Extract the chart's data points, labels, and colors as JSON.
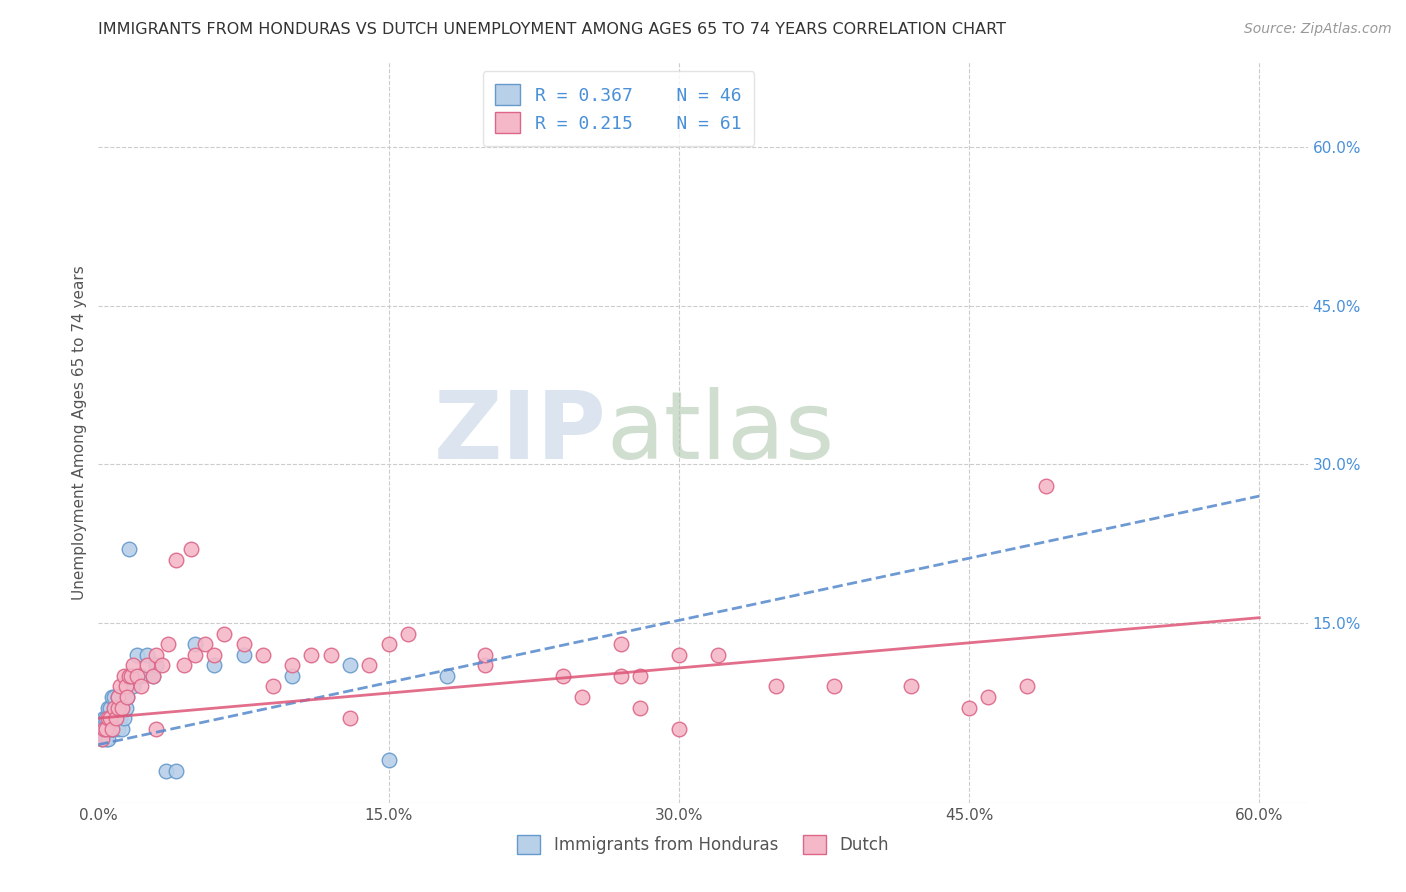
{
  "title": "IMMIGRANTS FROM HONDURAS VS DUTCH UNEMPLOYMENT AMONG AGES 65 TO 74 YEARS CORRELATION CHART",
  "source_text": "Source: ZipAtlas.com",
  "ylabel": "Unemployment Among Ages 65 to 74 years",
  "xlim": [
    0.0,
    0.625
  ],
  "ylim": [
    -0.02,
    0.68
  ],
  "xtick_labels": [
    "0.0%",
    "15.0%",
    "30.0%",
    "45.0%",
    "60.0%"
  ],
  "xtick_vals": [
    0.0,
    0.15,
    0.3,
    0.45,
    0.6
  ],
  "ytick_right_labels": [
    "15.0%",
    "30.0%",
    "45.0%",
    "60.0%"
  ],
  "ytick_right_vals": [
    0.15,
    0.3,
    0.45,
    0.6
  ],
  "hgrid_vals": [
    0.15,
    0.3,
    0.45,
    0.6
  ],
  "series1_color": "#b8d0e8",
  "series1_edge": "#6699cc",
  "series1_line_color": "#5588cc",
  "series2_color": "#f4b8c8",
  "series2_edge": "#dd6688",
  "series2_line_color": "#dd5577",
  "R1": 0.367,
  "N1": 46,
  "R2": 0.215,
  "N2": 61,
  "legend_label1": "Immigrants from Honduras",
  "legend_label2": "Dutch",
  "watermark_zip": "ZIP",
  "watermark_atlas": "atlas",
  "watermark_color_zip": "#c5d5e5",
  "watermark_color_atlas": "#b0c8b0",
  "title_color": "#333333",
  "axis_label_color": "#555555",
  "right_tick_color": "#4a90d9",
  "legend_r_color": "#4a90d9",
  "series1_x": [
    0.002,
    0.003,
    0.003,
    0.004,
    0.004,
    0.005,
    0.005,
    0.005,
    0.006,
    0.006,
    0.006,
    0.007,
    0.007,
    0.007,
    0.008,
    0.008,
    0.008,
    0.009,
    0.009,
    0.01,
    0.01,
    0.01,
    0.011,
    0.011,
    0.012,
    0.012,
    0.013,
    0.014,
    0.015,
    0.016,
    0.017,
    0.018,
    0.02,
    0.022,
    0.025,
    0.028,
    0.03,
    0.035,
    0.04,
    0.05,
    0.06,
    0.075,
    0.1,
    0.13,
    0.15,
    0.18
  ],
  "series1_y": [
    0.04,
    0.05,
    0.06,
    0.04,
    0.06,
    0.04,
    0.05,
    0.07,
    0.05,
    0.06,
    0.07,
    0.05,
    0.06,
    0.08,
    0.05,
    0.06,
    0.08,
    0.06,
    0.07,
    0.05,
    0.06,
    0.08,
    0.06,
    0.07,
    0.05,
    0.07,
    0.06,
    0.07,
    0.08,
    0.22,
    0.1,
    0.09,
    0.12,
    0.1,
    0.12,
    0.1,
    0.11,
    0.01,
    0.01,
    0.13,
    0.11,
    0.12,
    0.1,
    0.11,
    0.02,
    0.1
  ],
  "series2_x": [
    0.002,
    0.003,
    0.004,
    0.005,
    0.006,
    0.007,
    0.008,
    0.009,
    0.01,
    0.01,
    0.011,
    0.012,
    0.013,
    0.014,
    0.015,
    0.016,
    0.017,
    0.018,
    0.02,
    0.022,
    0.025,
    0.028,
    0.03,
    0.033,
    0.036,
    0.04,
    0.044,
    0.048,
    0.05,
    0.055,
    0.06,
    0.065,
    0.075,
    0.085,
    0.1,
    0.11,
    0.12,
    0.14,
    0.16,
    0.2,
    0.24,
    0.28,
    0.3,
    0.35,
    0.38,
    0.42,
    0.45,
    0.46,
    0.48,
    0.49,
    0.3,
    0.32,
    0.25,
    0.28,
    0.2,
    0.27,
    0.03,
    0.27,
    0.15,
    0.13,
    0.09
  ],
  "series2_y": [
    0.04,
    0.05,
    0.05,
    0.06,
    0.06,
    0.05,
    0.07,
    0.06,
    0.07,
    0.08,
    0.09,
    0.07,
    0.1,
    0.09,
    0.08,
    0.1,
    0.1,
    0.11,
    0.1,
    0.09,
    0.11,
    0.1,
    0.12,
    0.11,
    0.13,
    0.21,
    0.11,
    0.22,
    0.12,
    0.13,
    0.12,
    0.14,
    0.13,
    0.12,
    0.11,
    0.12,
    0.12,
    0.11,
    0.14,
    0.11,
    0.1,
    0.1,
    0.05,
    0.09,
    0.09,
    0.09,
    0.07,
    0.08,
    0.09,
    0.28,
    0.12,
    0.12,
    0.08,
    0.07,
    0.12,
    0.1,
    0.05,
    0.13,
    0.13,
    0.06,
    0.09
  ],
  "trend1_x0": 0.0,
  "trend1_y0": 0.035,
  "trend1_x1": 0.6,
  "trend1_y1": 0.27,
  "trend2_x0": 0.0,
  "trend2_y0": 0.06,
  "trend2_x1": 0.6,
  "trend2_y1": 0.155
}
